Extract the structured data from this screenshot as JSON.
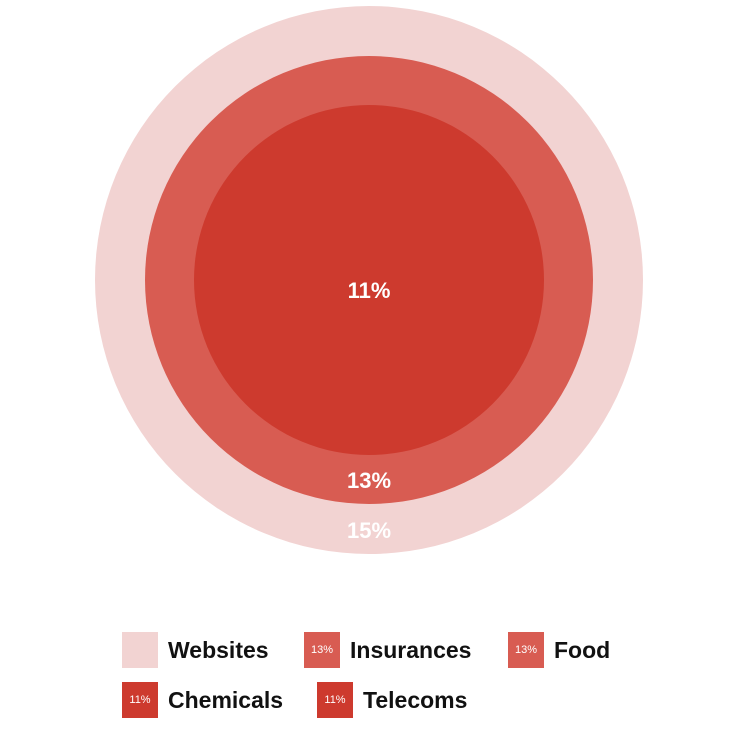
{
  "chart_data": {
    "type": "nested-circles",
    "title": "",
    "series": [
      {
        "name": "Websites",
        "value_label": "15%",
        "color": "#f2d3d2",
        "label_color": "#ffffff",
        "show_label": true
      },
      {
        "name": "Insurances",
        "value_label": "13%",
        "color": "#d85c52",
        "label_color": "#ffffff",
        "show_label": true
      },
      {
        "name": "Food",
        "value_label": "13%",
        "color": "#d85c52",
        "label_color": "#ffffff",
        "show_label": false
      },
      {
        "name": "Chemicals",
        "value_label": "11%",
        "color": "#cd3a2e",
        "label_color": "#ffffff",
        "show_label": true
      },
      {
        "name": "Telecoms",
        "value_label": "11%",
        "color": "#cd3a2e",
        "label_color": "#ffffff",
        "show_label": false
      }
    ],
    "values": [
      15,
      13,
      13,
      11,
      11
    ],
    "legend_position": "bottom"
  },
  "legend": {
    "items": [
      {
        "label": "Websites",
        "badge": ""
      },
      {
        "label": "Insurances",
        "badge": "13%"
      },
      {
        "label": "Food",
        "badge": "13%"
      },
      {
        "label": "Chemicals",
        "badge": "11%"
      },
      {
        "label": "Telecoms",
        "badge": "11%"
      }
    ]
  }
}
